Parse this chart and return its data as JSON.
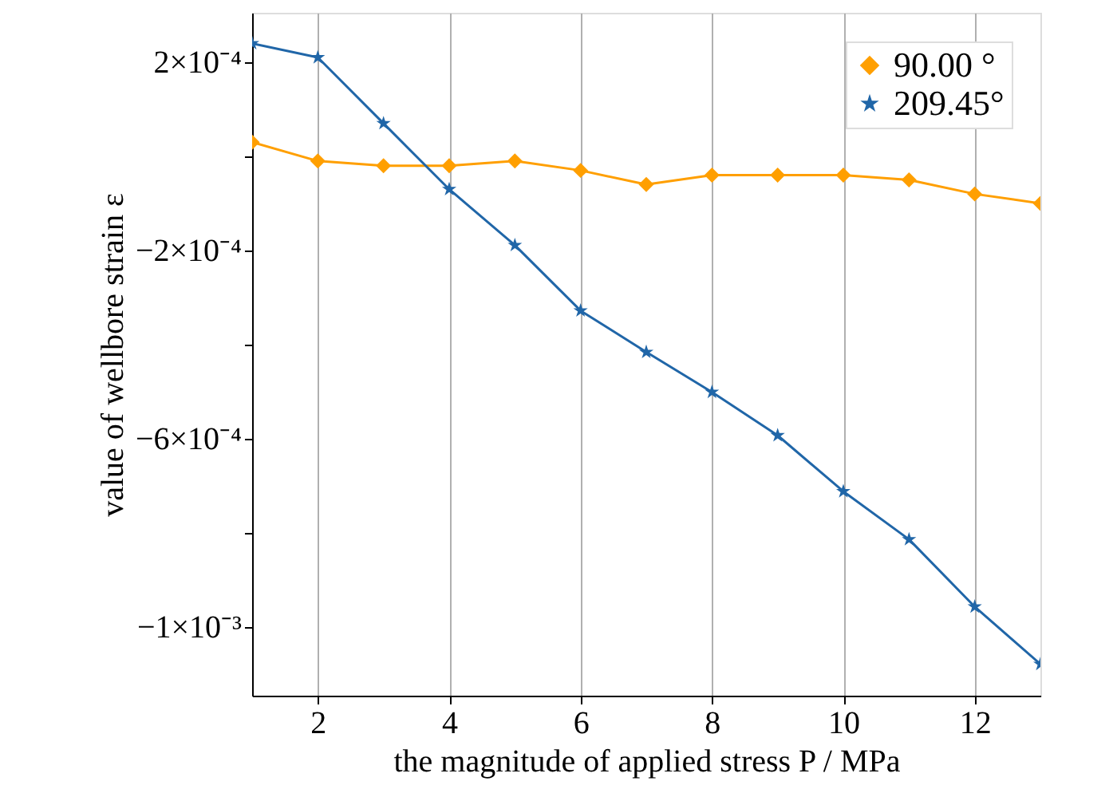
{
  "chart_data": {
    "type": "line",
    "xlabel": "the magnitude of applied stress P / MPa",
    "ylabel": "value of wellbore strain ε",
    "x": [
      1,
      2,
      3,
      4,
      5,
      6,
      7,
      8,
      9,
      10,
      11,
      12,
      13
    ],
    "series": [
      {
        "name": "90.00 °",
        "color": "#ff9f00",
        "marker": "diamond",
        "values": [
          3e-05,
          -1e-05,
          -2e-05,
          -2e-05,
          -1e-05,
          -3e-05,
          -6e-05,
          -4e-05,
          -4e-05,
          -4e-05,
          -5e-05,
          -8e-05,
          -0.0001
        ]
      },
      {
        "name": "209.45°",
        "color": "#2066a8",
        "marker": "star",
        "values": [
          0.00024,
          0.00021,
          7e-05,
          -7e-05,
          -0.000189,
          -0.000328,
          -0.000416,
          -0.000501,
          -0.000593,
          -0.000712,
          -0.000814,
          -0.000957,
          -0.001079
        ]
      }
    ],
    "xlim": [
      1,
      13
    ],
    "xticks": [
      2,
      4,
      6,
      8,
      10,
      12
    ],
    "ylim": [
      -0.001146,
      0.000305
    ],
    "yticks": [
      {
        "value": 0.0002,
        "label": "2×10⁻⁴"
      },
      {
        "value": 0,
        "label": null
      },
      {
        "value": -0.0002,
        "label": "−2×10⁻⁴"
      },
      {
        "value": -0.0004,
        "label": null
      },
      {
        "value": -0.0006,
        "label": "−6×10⁻⁴"
      },
      {
        "value": -0.0008,
        "label": null
      },
      {
        "value": -0.001,
        "label": "−1×10⁻³"
      }
    ],
    "grid": "x",
    "legend": "top right",
    "line_style": "solid"
  }
}
